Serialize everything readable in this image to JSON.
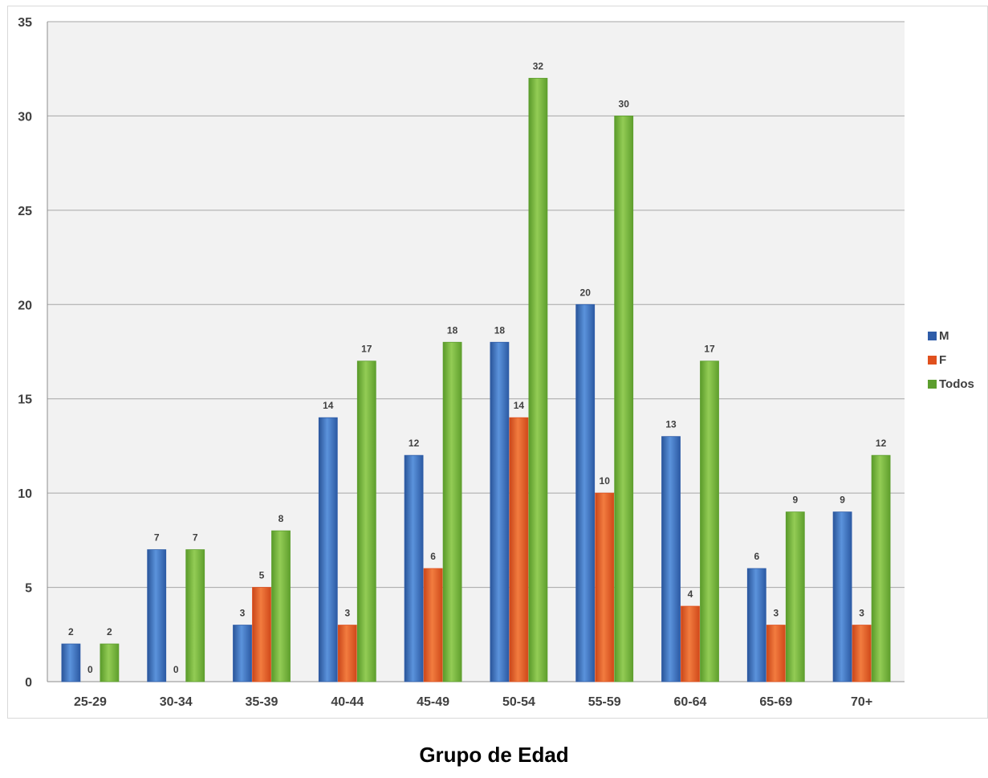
{
  "chart_data": {
    "type": "bar",
    "title": "",
    "xlabel": "Grupo de Edad",
    "ylabel": "",
    "ylim": [
      0,
      35
    ],
    "yticks": [
      0,
      5,
      10,
      15,
      20,
      25,
      30,
      35
    ],
    "grid": true,
    "legend_position": "right",
    "categories": [
      "25-29",
      "30-34",
      "35-39",
      "40-44",
      "45-49",
      "50-54",
      "55-59",
      "60-64",
      "65-69",
      "70+"
    ],
    "series": [
      {
        "name": "M",
        "color": "#2e5ca8",
        "values": [
          2,
          7,
          3,
          14,
          12,
          18,
          20,
          13,
          6,
          9
        ]
      },
      {
        "name": "F",
        "color": "#e0501e",
        "values": [
          0,
          0,
          5,
          3,
          6,
          14,
          10,
          4,
          3,
          3
        ]
      },
      {
        "name": "Todos",
        "color": "#5c9e2e",
        "values": [
          2,
          7,
          8,
          17,
          18,
          32,
          30,
          17,
          9,
          12
        ]
      }
    ]
  }
}
